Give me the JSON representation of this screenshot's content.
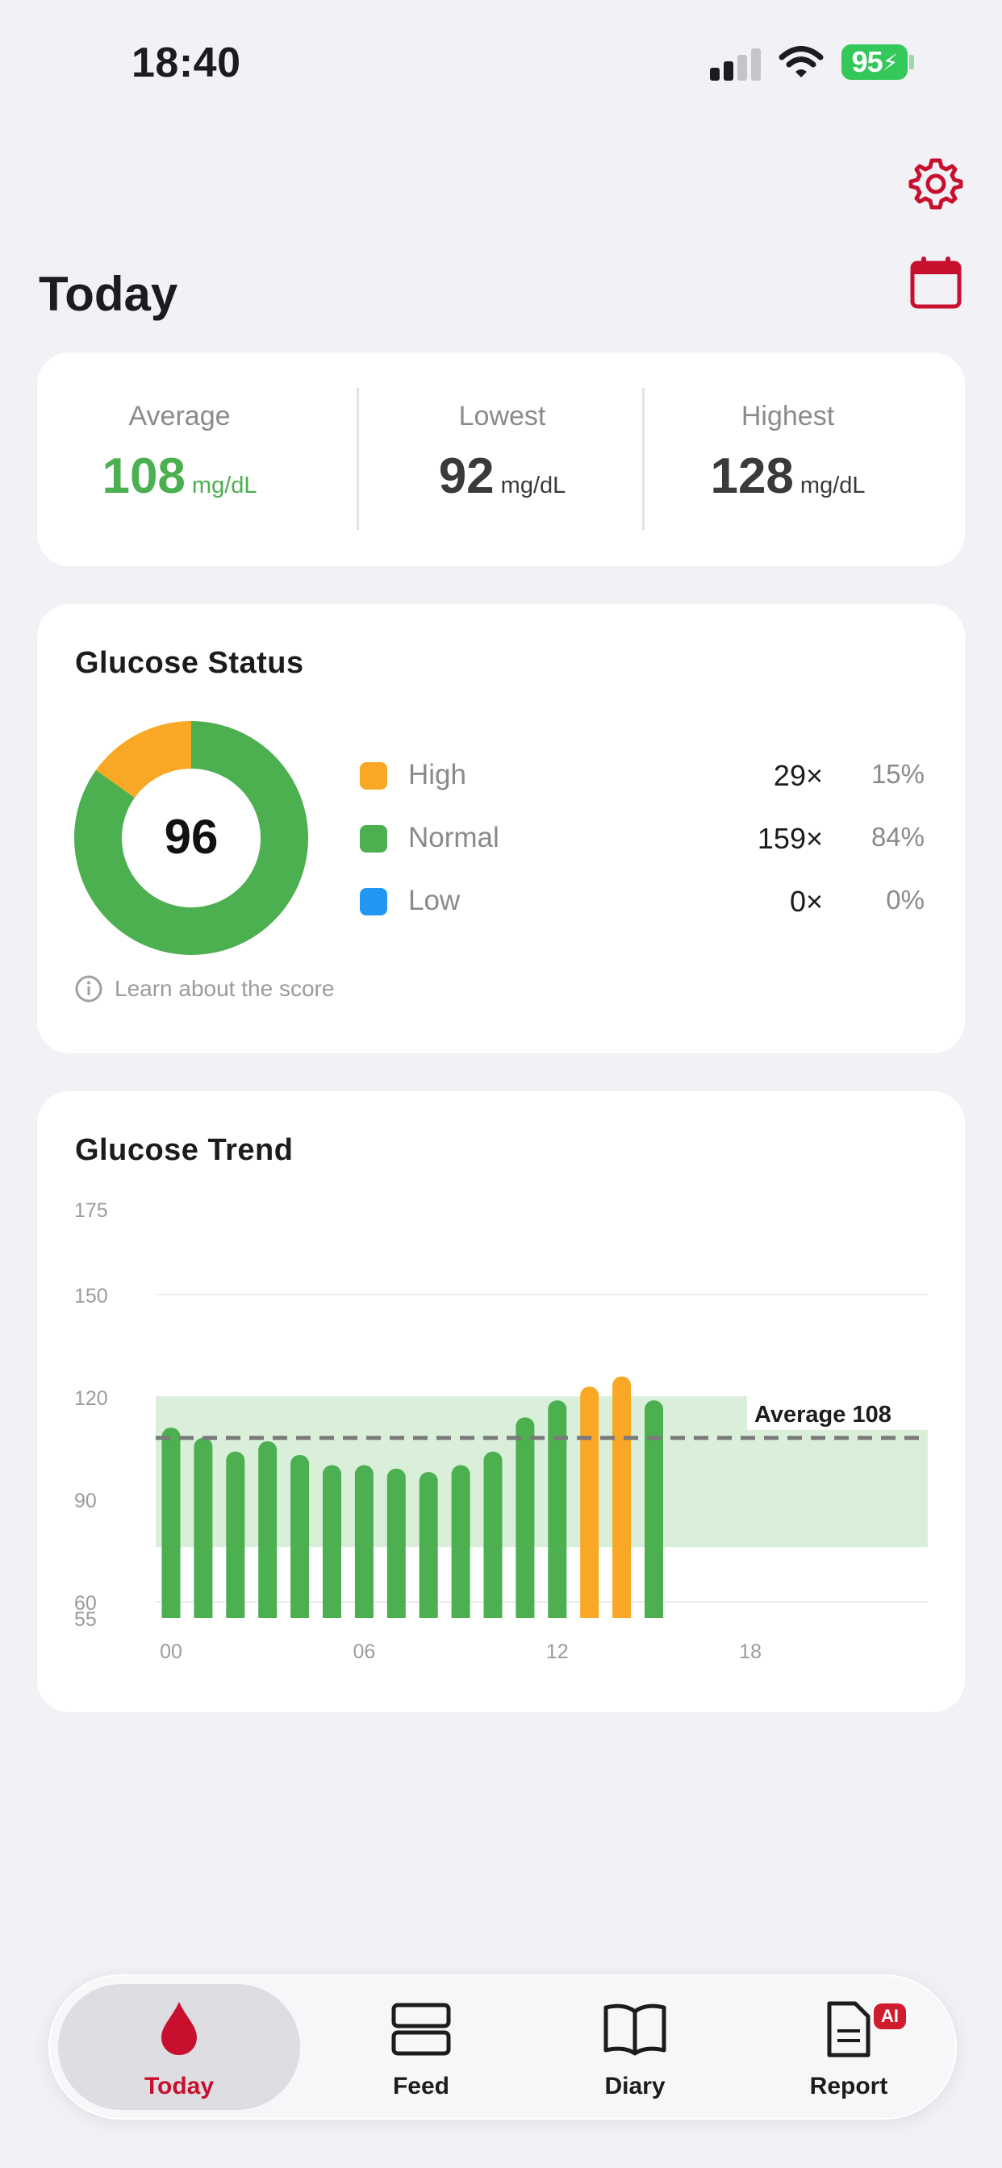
{
  "status_bar": {
    "time": "18:40",
    "battery": "95"
  },
  "header": {
    "title": "Today",
    "icons": [
      "gear-icon",
      "calendar-icon"
    ]
  },
  "summary": {
    "average": {
      "label": "Average",
      "value": "108",
      "unit": "mg/dL",
      "color": "#4caf50"
    },
    "lowest": {
      "label": "Lowest",
      "value": "92",
      "unit": "mg/dL"
    },
    "highest": {
      "label": "Highest",
      "value": "128",
      "unit": "mg/dL"
    }
  },
  "status_card": {
    "title": "Glucose Status",
    "score": "96",
    "legend": [
      {
        "label": "High",
        "count": "29×",
        "pct": "15%",
        "color": "#f9a825"
      },
      {
        "label": "Normal",
        "count": "159×",
        "pct": "84%",
        "color": "#4caf50"
      },
      {
        "label": "Low",
        "count": "0×",
        "pct": "0%",
        "color": "#2196f3"
      }
    ],
    "learn_text": "Learn about the score"
  },
  "trend_card": {
    "title": "Glucose Trend",
    "average_label": "Average 108"
  },
  "chart_data": [
    {
      "type": "pie",
      "labels": [
        "High",
        "Normal",
        "Low"
      ],
      "values": [
        15,
        84,
        0
      ],
      "center_label": "96"
    },
    {
      "type": "bar",
      "y_ticks": [
        175,
        150,
        120,
        90,
        60,
        55
      ],
      "x_ticks": [
        "00",
        "06",
        "12",
        "18"
      ],
      "ylim": [
        55,
        175
      ],
      "target_range": [
        76,
        120
      ],
      "average": 108,
      "x": [
        0,
        1,
        2,
        3,
        4,
        5,
        6,
        7,
        8,
        9,
        10,
        11,
        12,
        13,
        14,
        15
      ],
      "values": [
        111,
        108,
        104,
        107,
        103,
        100,
        100,
        99,
        98,
        100,
        104,
        114,
        119,
        123,
        126,
        119
      ],
      "status": [
        "normal",
        "normal",
        "normal",
        "normal",
        "normal",
        "normal",
        "normal",
        "normal",
        "normal",
        "normal",
        "normal",
        "normal",
        "normal",
        "high",
        "high",
        "normal"
      ],
      "colors": {
        "normal": "#4caf50",
        "high": "#f9a825",
        "range": "#d9efd9",
        "average_line": "#7a7a7a"
      }
    }
  ],
  "tabs": [
    {
      "label": "Today",
      "icon": "drop-icon",
      "active": true
    },
    {
      "label": "Feed",
      "icon": "feed-icon"
    },
    {
      "label": "Diary",
      "icon": "book-icon"
    },
    {
      "label": "Report",
      "icon": "report-icon",
      "badge": "AI"
    }
  ]
}
